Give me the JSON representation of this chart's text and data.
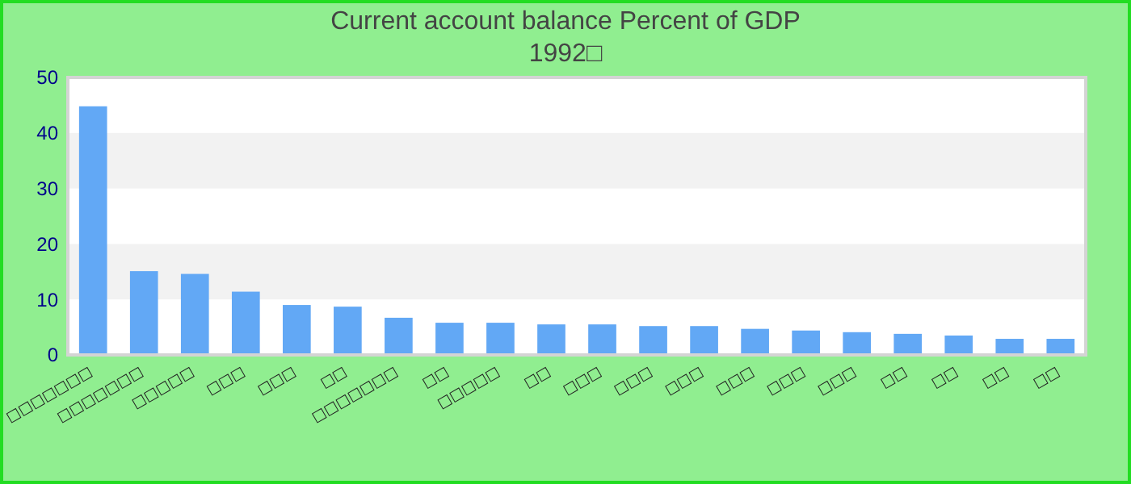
{
  "chart_data": {
    "type": "bar",
    "title": "Current account balance  Percent of GDP",
    "subtitle": "1992□",
    "categories": [
      "□□□□□□□",
      "□□□□□□□",
      "□□□□□",
      "□□□",
      "□□□",
      "□□",
      "□□□□□□□",
      "□□",
      "□□□□□",
      "□□",
      "□□□",
      "□□□",
      "□□□",
      "□□□",
      "□□□",
      "□□□",
      "□□",
      "□□",
      "□□",
      "□□"
    ],
    "values": [
      44.8,
      15.1,
      14.6,
      11.4,
      9.0,
      8.7,
      6.7,
      5.8,
      5.8,
      5.5,
      5.5,
      5.2,
      5.2,
      4.7,
      4.4,
      4.1,
      3.8,
      3.5,
      2.9,
      2.9
    ],
    "color": "#62a8f5",
    "ylim": [
      0,
      50
    ],
    "yticks": [
      0,
      10,
      20,
      30,
      40,
      50
    ]
  }
}
